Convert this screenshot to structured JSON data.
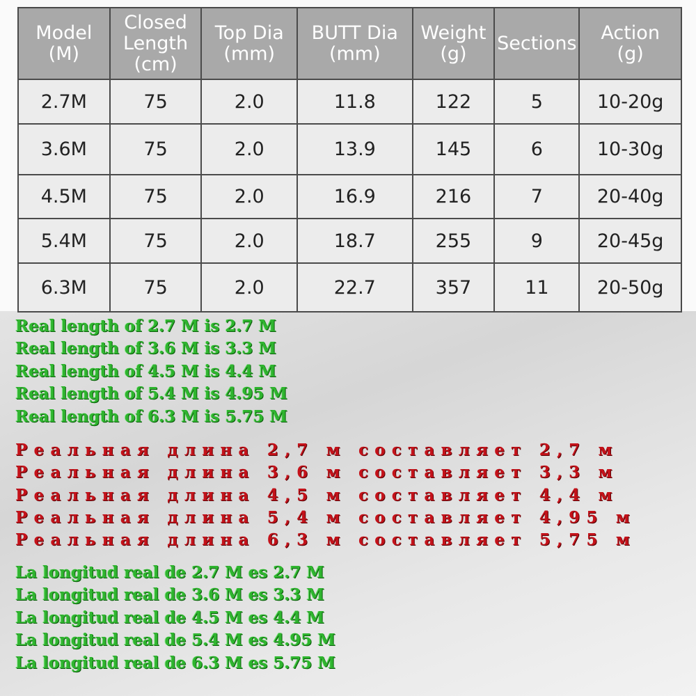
{
  "table": {
    "header": [
      "Model\n(M)",
      "Closed\nLength\n(cm)",
      "Top Dia\n(mm)",
      "BUTT Dia\n(mm)",
      "Weight\n(g)",
      "Sections",
      "Action\n(g)"
    ],
    "rows": [
      [
        "2.7M",
        "75",
        "2.0",
        "11.8",
        "122",
        "5",
        "10-20g"
      ],
      [
        "3.6M",
        "75",
        "2.0",
        "13.9",
        "145",
        "6",
        "10-30g"
      ],
      [
        "4.5M",
        "75",
        "2.0",
        "16.9",
        "216",
        "7",
        "20-40g"
      ],
      [
        "5.4M",
        "75",
        "2.0",
        "18.7",
        "255",
        "9",
        "20-45g"
      ],
      [
        "6.3M",
        "75",
        "2.0",
        "22.7",
        "357",
        "11",
        "20-50g"
      ]
    ]
  },
  "english": [
    "Real length of 2.7 M is 2.7 M",
    "Real length of 3.6 M is 3.3 M",
    "Real length of 4.5 M is 4.4 M",
    "Real length of 5.4 M is 4.95 M",
    "Real length of 6.3 M is 5.75 M"
  ],
  "russian": [
    "Реальная длина 2,7 м составляет 2,7 м",
    "Реальная длина 3,6 м составляет 3,3 м",
    "Реальная длина 4,5 м составляет 4,4 м",
    "Реальная длина 5,4 м составляет 4,95 м",
    "Реальная длина 6,3 м составляет 5,75 м"
  ],
  "spanish": [
    "La longitud real de 2.7 M es 2.7 M",
    "La longitud real de 3.6 M es 3.3 M",
    "La longitud real de 4.5 M es 4.4 M",
    "La longitud real de 5.4 M es 4.95 M",
    "La longitud real de 6.3 M es 5.75 M"
  ]
}
